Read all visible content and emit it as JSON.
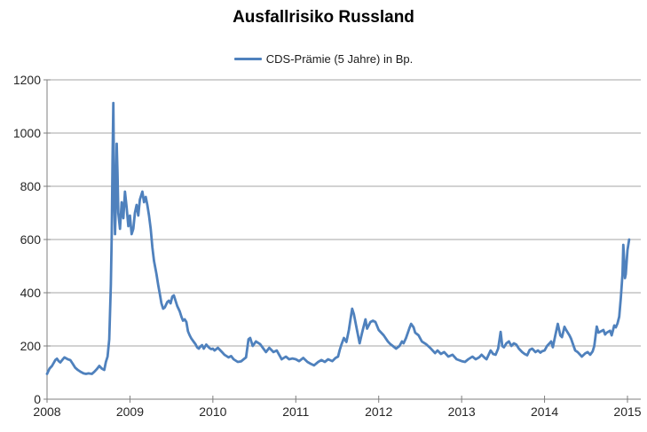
{
  "title": "Ausfallrisiko Russland",
  "legend": {
    "label": "CDS-Prämie (5 Jahre) in Bp.",
    "color": "#4F81BD"
  },
  "colors": {
    "line": "#4F81BD",
    "grid": "#A6A6A6",
    "axis": "#7F7F7F",
    "tick": "#7F7F7F",
    "label": "#262626",
    "background": "#FFFFFF"
  },
  "chart_data": {
    "type": "line",
    "title": "Ausfallrisiko Russland",
    "xlabel": "",
    "ylabel": "",
    "grid": "horizontal",
    "legend_position": "top",
    "x_axis": {
      "min": 2008,
      "max": 2015.17,
      "ticks": [
        2008,
        2009,
        2010,
        2011,
        2012,
        2013,
        2014,
        2015
      ]
    },
    "y_axis": {
      "min": 0,
      "max": 1200,
      "step": 200,
      "ticks": [
        0,
        200,
        400,
        600,
        800,
        1000,
        1200
      ]
    },
    "series": [
      {
        "name": "CDS-Prämie (5 Jahre) in Bp.",
        "color": "#4F81BD",
        "points": [
          [
            2008.0,
            95
          ],
          [
            2008.03,
            115
          ],
          [
            2008.06,
            125
          ],
          [
            2008.1,
            147
          ],
          [
            2008.12,
            152
          ],
          [
            2008.14,
            143
          ],
          [
            2008.16,
            138
          ],
          [
            2008.19,
            150
          ],
          [
            2008.21,
            157
          ],
          [
            2008.25,
            150
          ],
          [
            2008.28,
            147
          ],
          [
            2008.31,
            133
          ],
          [
            2008.34,
            118
          ],
          [
            2008.37,
            110
          ],
          [
            2008.41,
            102
          ],
          [
            2008.44,
            97
          ],
          [
            2008.47,
            95
          ],
          [
            2008.5,
            97
          ],
          [
            2008.54,
            95
          ],
          [
            2008.57,
            103
          ],
          [
            2008.6,
            113
          ],
          [
            2008.63,
            125
          ],
          [
            2008.66,
            115
          ],
          [
            2008.69,
            110
          ],
          [
            2008.71,
            140
          ],
          [
            2008.73,
            160
          ],
          [
            2008.75,
            225
          ],
          [
            2008.77,
            430
          ],
          [
            2008.78,
            620
          ],
          [
            2008.79,
            900
          ],
          [
            2008.8,
            1113
          ],
          [
            2008.81,
            750
          ],
          [
            2008.82,
            620
          ],
          [
            2008.83,
            730
          ],
          [
            2008.84,
            960
          ],
          [
            2008.85,
            850
          ],
          [
            2008.86,
            700
          ],
          [
            2008.88,
            640
          ],
          [
            2008.9,
            740
          ],
          [
            2008.92,
            680
          ],
          [
            2008.94,
            780
          ],
          [
            2008.96,
            720
          ],
          [
            2008.98,
            650
          ],
          [
            2009.0,
            690
          ],
          [
            2009.02,
            620
          ],
          [
            2009.04,
            640
          ],
          [
            2009.06,
            700
          ],
          [
            2009.08,
            730
          ],
          [
            2009.1,
            690
          ],
          [
            2009.12,
            750
          ],
          [
            2009.15,
            780
          ],
          [
            2009.17,
            740
          ],
          [
            2009.19,
            760
          ],
          [
            2009.21,
            730
          ],
          [
            2009.23,
            690
          ],
          [
            2009.25,
            640
          ],
          [
            2009.27,
            570
          ],
          [
            2009.29,
            520
          ],
          [
            2009.32,
            470
          ],
          [
            2009.34,
            430
          ],
          [
            2009.36,
            395
          ],
          [
            2009.38,
            360
          ],
          [
            2009.4,
            340
          ],
          [
            2009.42,
            345
          ],
          [
            2009.45,
            365
          ],
          [
            2009.47,
            370
          ],
          [
            2009.49,
            360
          ],
          [
            2009.51,
            385
          ],
          [
            2009.53,
            390
          ],
          [
            2009.55,
            370
          ],
          [
            2009.57,
            350
          ],
          [
            2009.6,
            330
          ],
          [
            2009.62,
            310
          ],
          [
            2009.64,
            295
          ],
          [
            2009.66,
            300
          ],
          [
            2009.68,
            290
          ],
          [
            2009.7,
            255
          ],
          [
            2009.72,
            240
          ],
          [
            2009.74,
            228
          ],
          [
            2009.77,
            215
          ],
          [
            2009.79,
            207
          ],
          [
            2009.81,
            195
          ],
          [
            2009.83,
            190
          ],
          [
            2009.85,
            198
          ],
          [
            2009.87,
            203
          ],
          [
            2009.89,
            190
          ],
          [
            2009.92,
            205
          ],
          [
            2009.94,
            198
          ],
          [
            2009.96,
            192
          ],
          [
            2009.98,
            188
          ],
          [
            2010.0,
            190
          ],
          [
            2010.02,
            183
          ],
          [
            2010.06,
            193
          ],
          [
            2010.11,
            177
          ],
          [
            2010.14,
            167
          ],
          [
            2010.19,
            157
          ],
          [
            2010.22,
            162
          ],
          [
            2010.25,
            150
          ],
          [
            2010.3,
            140
          ],
          [
            2010.34,
            142
          ],
          [
            2010.4,
            157
          ],
          [
            2010.43,
            225
          ],
          [
            2010.45,
            230
          ],
          [
            2010.48,
            200
          ],
          [
            2010.52,
            217
          ],
          [
            2010.57,
            207
          ],
          [
            2010.61,
            190
          ],
          [
            2010.64,
            177
          ],
          [
            2010.68,
            193
          ],
          [
            2010.73,
            177
          ],
          [
            2010.77,
            183
          ],
          [
            2010.83,
            150
          ],
          [
            2010.88,
            160
          ],
          [
            2010.92,
            150
          ],
          [
            2010.96,
            153
          ],
          [
            2011.0,
            150
          ],
          [
            2011.04,
            143
          ],
          [
            2011.09,
            155
          ],
          [
            2011.14,
            140
          ],
          [
            2011.18,
            133
          ],
          [
            2011.22,
            127
          ],
          [
            2011.27,
            140
          ],
          [
            2011.31,
            147
          ],
          [
            2011.35,
            140
          ],
          [
            2011.39,
            150
          ],
          [
            2011.44,
            143
          ],
          [
            2011.48,
            155
          ],
          [
            2011.51,
            160
          ],
          [
            2011.53,
            185
          ],
          [
            2011.55,
            205
          ],
          [
            2011.58,
            230
          ],
          [
            2011.61,
            215
          ],
          [
            2011.64,
            260
          ],
          [
            2011.66,
            300
          ],
          [
            2011.68,
            340
          ],
          [
            2011.7,
            320
          ],
          [
            2011.74,
            257
          ],
          [
            2011.77,
            210
          ],
          [
            2011.8,
            250
          ],
          [
            2011.84,
            300
          ],
          [
            2011.86,
            265
          ],
          [
            2011.9,
            290
          ],
          [
            2011.93,
            295
          ],
          [
            2011.96,
            290
          ],
          [
            2012.0,
            260
          ],
          [
            2012.03,
            250
          ],
          [
            2012.06,
            240
          ],
          [
            2012.11,
            217
          ],
          [
            2012.14,
            207
          ],
          [
            2012.17,
            200
          ],
          [
            2012.21,
            190
          ],
          [
            2012.25,
            200
          ],
          [
            2012.28,
            217
          ],
          [
            2012.3,
            210
          ],
          [
            2012.33,
            230
          ],
          [
            2012.37,
            267
          ],
          [
            2012.39,
            283
          ],
          [
            2012.42,
            270
          ],
          [
            2012.44,
            250
          ],
          [
            2012.48,
            240
          ],
          [
            2012.52,
            217
          ],
          [
            2012.57,
            207
          ],
          [
            2012.62,
            193
          ],
          [
            2012.68,
            173
          ],
          [
            2012.71,
            183
          ],
          [
            2012.75,
            170
          ],
          [
            2012.79,
            177
          ],
          [
            2012.84,
            160
          ],
          [
            2012.89,
            167
          ],
          [
            2012.94,
            150
          ],
          [
            2013.0,
            143
          ],
          [
            2013.04,
            140
          ],
          [
            2013.08,
            150
          ],
          [
            2013.13,
            160
          ],
          [
            2013.17,
            150
          ],
          [
            2013.21,
            157
          ],
          [
            2013.24,
            167
          ],
          [
            2013.28,
            155
          ],
          [
            2013.3,
            150
          ],
          [
            2013.33,
            170
          ],
          [
            2013.35,
            183
          ],
          [
            2013.38,
            170
          ],
          [
            2013.41,
            167
          ],
          [
            2013.44,
            190
          ],
          [
            2013.47,
            253
          ],
          [
            2013.49,
            200
          ],
          [
            2013.51,
            195
          ],
          [
            2013.54,
            210
          ],
          [
            2013.57,
            217
          ],
          [
            2013.6,
            200
          ],
          [
            2013.63,
            210
          ],
          [
            2013.66,
            205
          ],
          [
            2013.69,
            190
          ],
          [
            2013.73,
            177
          ],
          [
            2013.76,
            170
          ],
          [
            2013.79,
            165
          ],
          [
            2013.82,
            185
          ],
          [
            2013.85,
            190
          ],
          [
            2013.89,
            177
          ],
          [
            2013.92,
            183
          ],
          [
            2013.95,
            175
          ],
          [
            2013.97,
            180
          ],
          [
            2014.0,
            183
          ],
          [
            2014.03,
            200
          ],
          [
            2014.06,
            210
          ],
          [
            2014.08,
            217
          ],
          [
            2014.1,
            195
          ],
          [
            2014.13,
            240
          ],
          [
            2014.16,
            283
          ],
          [
            2014.19,
            240
          ],
          [
            2014.21,
            233
          ],
          [
            2014.24,
            272
          ],
          [
            2014.26,
            260
          ],
          [
            2014.3,
            240
          ],
          [
            2014.32,
            227
          ],
          [
            2014.35,
            200
          ],
          [
            2014.37,
            183
          ],
          [
            2014.4,
            177
          ],
          [
            2014.43,
            167
          ],
          [
            2014.45,
            160
          ],
          [
            2014.49,
            172
          ],
          [
            2014.52,
            177
          ],
          [
            2014.55,
            167
          ],
          [
            2014.58,
            180
          ],
          [
            2014.6,
            200
          ],
          [
            2014.63,
            273
          ],
          [
            2014.65,
            250
          ],
          [
            2014.68,
            255
          ],
          [
            2014.71,
            260
          ],
          [
            2014.73,
            243
          ],
          [
            2014.75,
            250
          ],
          [
            2014.79,
            257
          ],
          [
            2014.81,
            240
          ],
          [
            2014.84,
            277
          ],
          [
            2014.86,
            270
          ],
          [
            2014.88,
            285
          ],
          [
            2014.9,
            310
          ],
          [
            2014.92,
            380
          ],
          [
            2014.94,
            470
          ],
          [
            2014.95,
            580
          ],
          [
            2014.96,
            520
          ],
          [
            2014.97,
            455
          ],
          [
            2014.98,
            470
          ],
          [
            2015.0,
            560
          ],
          [
            2015.02,
            600
          ]
        ]
      }
    ]
  }
}
